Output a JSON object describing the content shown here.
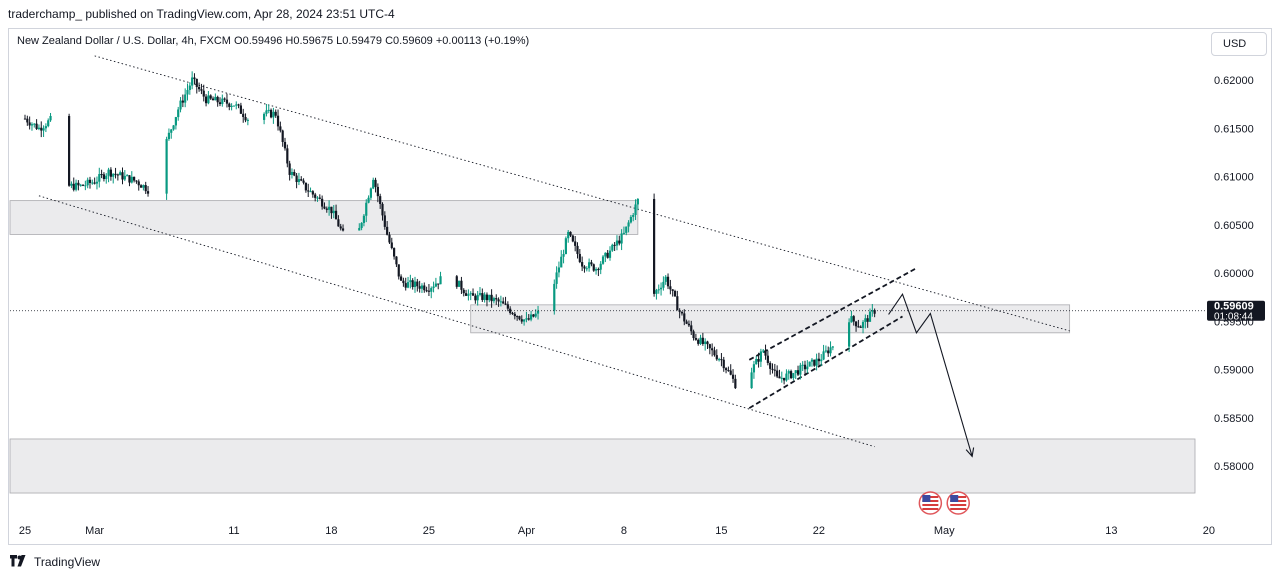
{
  "publisher_line": "traderchamp_ published on TradingView.com, Apr 28, 2024 23:51 UTC-4",
  "symbol_line": "New Zealand Dollar / U.S. Dollar, 4h, FXCM  O0.59496  H0.59675  L0.59479  C0.59609  +0.00113 (+0.19%)",
  "currency": "USD",
  "footer_brand": "TradingView",
  "colors": {
    "up": "#089981",
    "down": "#131722",
    "zone": "#d9d9d9",
    "line": "#131722",
    "pricebox": "#131722"
  },
  "chart_data": {
    "type": "candlestick",
    "timeframe": "4h",
    "ylim": [
      0.577,
      0.623
    ],
    "yticks": [
      "0.62000",
      "0.61500",
      "0.61000",
      "0.60500",
      "0.60000",
      "0.59500",
      "0.59000",
      "0.58500",
      "0.58000"
    ],
    "xticks": [
      "25",
      "Mar",
      "11",
      "18",
      "25",
      "Apr",
      "8",
      "15",
      "22",
      "May",
      "13",
      "20"
    ],
    "current_price": "0.59609",
    "countdown": "01:08:44",
    "close_path": [
      [
        "Feb 23",
        0.6195
      ],
      [
        "Feb 24",
        0.617
      ],
      [
        "Feb 26",
        0.615
      ],
      [
        "Feb 27",
        0.616
      ],
      [
        "Feb 28",
        0.609
      ],
      [
        "Feb 29",
        0.609
      ],
      [
        "Mar 1",
        0.6095
      ],
      [
        "Mar 2",
        0.6105
      ],
      [
        "Mar 4",
        0.6095
      ],
      [
        "Mar 5",
        0.6085
      ],
      [
        "Mar 6",
        0.613
      ],
      [
        "Mar 7",
        0.617
      ],
      [
        "Mar 8",
        0.62
      ],
      [
        "Mar 9",
        0.618
      ],
      [
        "Mar 11",
        0.6175
      ],
      [
        "Mar 12",
        0.616
      ],
      [
        "Mar 13",
        0.6165
      ],
      [
        "Mar 14",
        0.6165
      ],
      [
        "Mar 15",
        0.6105
      ],
      [
        "Mar 16",
        0.609
      ],
      [
        "Mar 18",
        0.6065
      ],
      [
        "Mar 19",
        0.6035
      ],
      [
        "Mar 20",
        0.6045
      ],
      [
        "Mar 21",
        0.61
      ],
      [
        "Mar 22",
        0.604
      ],
      [
        "Mar 23",
        0.599
      ],
      [
        "Mar 25",
        0.5985
      ],
      [
        "Mar 26",
        0.5995
      ],
      [
        "Mar 27",
        0.599
      ],
      [
        "Mar 28",
        0.5975
      ],
      [
        "Mar 29",
        0.5975
      ],
      [
        "Mar 30",
        0.597
      ],
      [
        "Apr 1",
        0.595
      ],
      [
        "Apr 2",
        0.596
      ],
      [
        "Apr 3",
        0.599
      ],
      [
        "Apr 4",
        0.604
      ],
      [
        "Apr 5",
        0.601
      ],
      [
        "Apr 6",
        0.6005
      ],
      [
        "Apr 8",
        0.604
      ],
      [
        "Apr 9",
        0.6075
      ],
      [
        "Apr 10",
        0.5975
      ],
      [
        "Apr 11",
        0.5995
      ],
      [
        "Apr 12",
        0.596
      ],
      [
        "Apr 13",
        0.5935
      ],
      [
        "Apr 15",
        0.591
      ],
      [
        "Apr 16",
        0.5885
      ],
      [
        "Apr 17",
        0.5895
      ],
      [
        "Apr 18",
        0.592
      ],
      [
        "Apr 19",
        0.589
      ],
      [
        "Apr 20",
        0.5895
      ],
      [
        "Apr 22",
        0.591
      ],
      [
        "Apr 23",
        0.5925
      ],
      [
        "Apr 24",
        0.5955
      ],
      [
        "Apr 25",
        0.5945
      ],
      [
        "Apr 26",
        0.5961
      ]
    ],
    "zones": [
      {
        "from": "Feb 23",
        "to": "Apr 9",
        "top": 0.6075,
        "bottom": 0.604
      },
      {
        "from": "Mar 28",
        "to": "May 10",
        "top": 0.5967,
        "bottom": 0.5938
      },
      {
        "from": "Feb 23",
        "to": "May 19",
        "top": 0.5828,
        "bottom": 0.5772
      }
    ],
    "trendlines": [
      {
        "style": "dotted",
        "from": [
          "Mar 1",
          0.6225
        ],
        "to": [
          "May 10",
          0.594
        ]
      },
      {
        "style": "dotted",
        "from": [
          "Feb 26",
          0.608
        ],
        "to": [
          "Apr 26",
          0.582
        ]
      },
      {
        "style": "dashed",
        "from": [
          "Apr 17",
          0.586
        ],
        "to": [
          "Apr 28",
          0.5955
        ]
      },
      {
        "style": "dashed",
        "from": [
          "Apr 17",
          0.591
        ],
        "to": [
          "Apr 29",
          0.6005
        ]
      }
    ],
    "projection": [
      [
        "Apr 27",
        0.5957
      ],
      [
        "Apr 28",
        0.5978
      ],
      [
        "Apr 29",
        0.5938
      ],
      [
        "Apr 30",
        0.5958
      ],
      [
        "May 3",
        0.581
      ]
    ],
    "event_markers": [
      "Apr 30",
      "May 2"
    ]
  }
}
